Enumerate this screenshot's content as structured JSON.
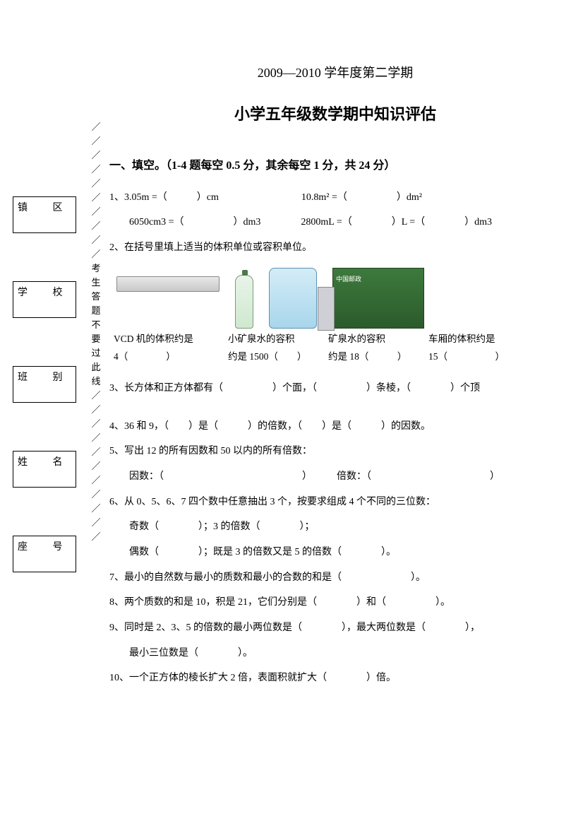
{
  "header": {
    "subtitle": "2009—2010 学年度第二学期",
    "title": "小学五年级数学期中知识评估"
  },
  "sidebar": {
    "boxes": [
      "镇    区",
      "学    校",
      "班    别",
      "姓    名",
      "座    号"
    ],
    "dashchar": "／",
    "midchars": [
      "考",
      "生",
      "答",
      "题",
      "不",
      "要",
      "过",
      "此",
      "线"
    ]
  },
  "section1": {
    "heading": "一、填空。（1-4 题每空 0.5 分，其余每空 1 分，共 24 分）",
    "q1a": "1、3.05m =（　　　）cm",
    "q1b": "10.8m² =（　　　　　）dm²",
    "q1c": "6050cm3 =（　　　　　）dm3",
    "q1d": "2800mL =（　　　　）L =（　　　　）dm3",
    "q2": "2、在括号里填上适当的体积单位或容积单位。",
    "cap1a": "VCD 机的体积约是",
    "cap1b": "4（　　　　）",
    "cap2a": "小矿泉水的容积",
    "cap2b": "约是 1500（　　）",
    "cap3a": "矿泉水的容积",
    "cap3b": "约是 18（　　　）",
    "cap4a": "车厢的体积约是",
    "cap4b": "15（　　　　　）",
    "truck_text": "中国邮政",
    "q3": "3、长方体和正方体都有（　　　　　）个面，（　　　　　）条棱，（　　　　）个顶",
    "q4": "4、36 和 9，（　　）是（　　　）的倍数，（　　）是（　　　）的因数。",
    "q5": "5、写出 12 的所有因数和 50 以内的所有倍数：",
    "q5a": "因数：（　　　　　　　　　　　　　　）　　　倍数：（　　　　　　　　　　　　）",
    "q6": "6、从 0、5、6、7 四个数中任意抽出 3 个，按要求组成 4 个不同的三位数：",
    "q6a": "奇数（　　　　）；3 的倍数（　　　　）；",
    "q6b": "偶数（　　　　）；既是 3 的倍数又是 5 的倍数（　　　　）。",
    "q7": "7、最小的自然数与最小的质数和最小的合数的和是（　　　　　　　）。",
    "q8": "8、两个质数的和是 10，积是 21，它们分别是（　　　　）和（　　　　　）。",
    "q9": "9、同时是 2、3、5 的倍数的最小两位数是（　　　　），最大两位数是（　　　　），",
    "q9a": "最小三位数是（　　　　）。",
    "q10": "10、一个正方体的棱长扩大 2 倍，表面积就扩大（　　　　）倍。"
  }
}
